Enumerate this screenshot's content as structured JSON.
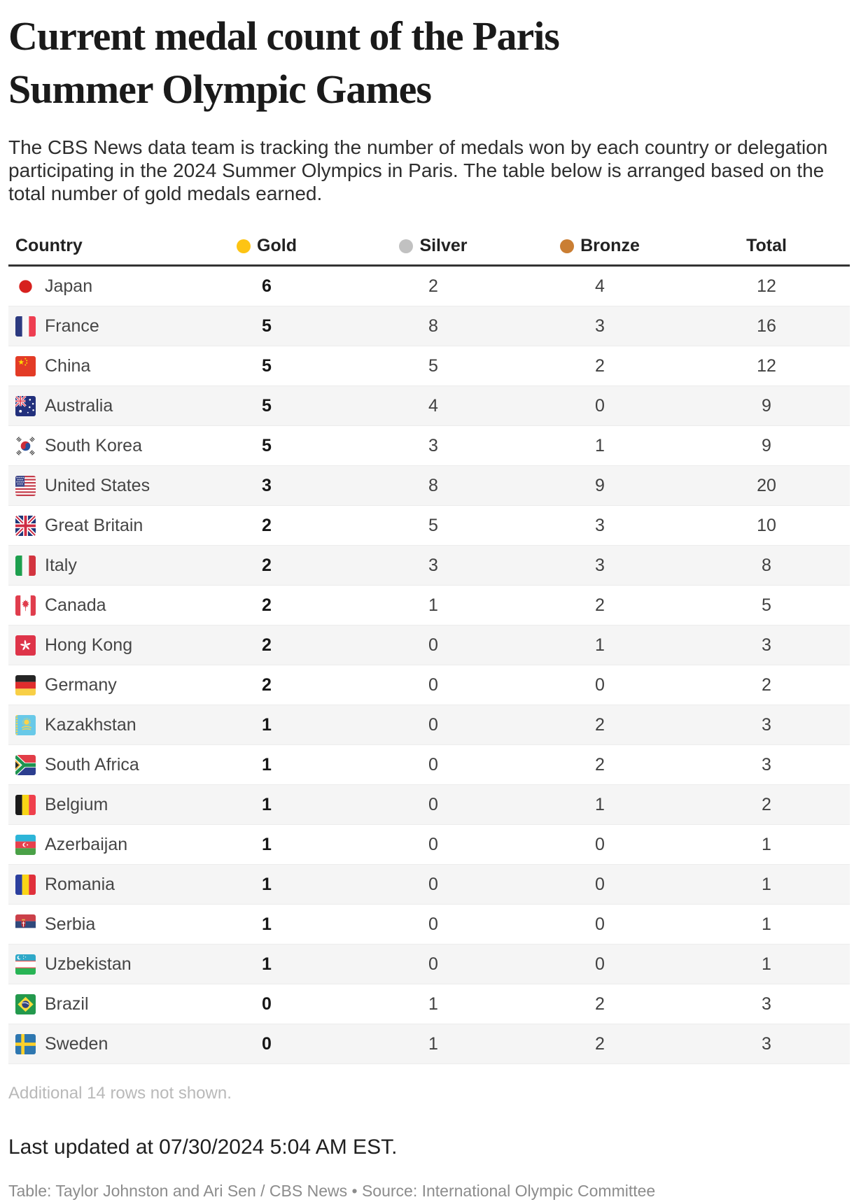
{
  "page": {
    "title": "Current medal count of the Paris Summer Olympic Games",
    "intro": "The CBS News data team is tracking the number of medals won by each country or delegation participating in the 2024 Summer Olympics in Paris. The table below is arranged based on the total number of gold medals earned."
  },
  "table": {
    "columns": [
      {
        "key": "country",
        "label": "Country"
      },
      {
        "key": "gold",
        "label": "Gold",
        "dot_color": "#fdc414"
      },
      {
        "key": "silver",
        "label": "Silver",
        "dot_color": "#c1c1c1"
      },
      {
        "key": "bronze",
        "label": "Bronze",
        "dot_color": "#ca7e33"
      },
      {
        "key": "total",
        "label": "Total"
      }
    ],
    "rows": [
      {
        "country": "Japan",
        "flag": "japan",
        "gold": 6,
        "silver": 2,
        "bronze": 4,
        "total": 12
      },
      {
        "country": "France",
        "flag": "france",
        "gold": 5,
        "silver": 8,
        "bronze": 3,
        "total": 16
      },
      {
        "country": "China",
        "flag": "china",
        "gold": 5,
        "silver": 5,
        "bronze": 2,
        "total": 12
      },
      {
        "country": "Australia",
        "flag": "australia",
        "gold": 5,
        "silver": 4,
        "bronze": 0,
        "total": 9
      },
      {
        "country": "South Korea",
        "flag": "south-korea",
        "gold": 5,
        "silver": 3,
        "bronze": 1,
        "total": 9
      },
      {
        "country": "United States",
        "flag": "united-states",
        "gold": 3,
        "silver": 8,
        "bronze": 9,
        "total": 20
      },
      {
        "country": "Great Britain",
        "flag": "great-britain",
        "gold": 2,
        "silver": 5,
        "bronze": 3,
        "total": 10
      },
      {
        "country": "Italy",
        "flag": "italy",
        "gold": 2,
        "silver": 3,
        "bronze": 3,
        "total": 8
      },
      {
        "country": "Canada",
        "flag": "canada",
        "gold": 2,
        "silver": 1,
        "bronze": 2,
        "total": 5
      },
      {
        "country": "Hong Kong",
        "flag": "hong-kong",
        "gold": 2,
        "silver": 0,
        "bronze": 1,
        "total": 3
      },
      {
        "country": "Germany",
        "flag": "germany",
        "gold": 2,
        "silver": 0,
        "bronze": 0,
        "total": 2
      },
      {
        "country": "Kazakhstan",
        "flag": "kazakhstan",
        "gold": 1,
        "silver": 0,
        "bronze": 2,
        "total": 3
      },
      {
        "country": "South Africa",
        "flag": "south-africa",
        "gold": 1,
        "silver": 0,
        "bronze": 2,
        "total": 3
      },
      {
        "country": "Belgium",
        "flag": "belgium",
        "gold": 1,
        "silver": 0,
        "bronze": 1,
        "total": 2
      },
      {
        "country": "Azerbaijan",
        "flag": "azerbaijan",
        "gold": 1,
        "silver": 0,
        "bronze": 0,
        "total": 1
      },
      {
        "country": "Romania",
        "flag": "romania",
        "gold": 1,
        "silver": 0,
        "bronze": 0,
        "total": 1
      },
      {
        "country": "Serbia",
        "flag": "serbia",
        "gold": 1,
        "silver": 0,
        "bronze": 0,
        "total": 1
      },
      {
        "country": "Uzbekistan",
        "flag": "uzbekistan",
        "gold": 1,
        "silver": 0,
        "bronze": 0,
        "total": 1
      },
      {
        "country": "Brazil",
        "flag": "brazil",
        "gold": 0,
        "silver": 1,
        "bronze": 2,
        "total": 3
      },
      {
        "country": "Sweden",
        "flag": "sweden",
        "gold": 0,
        "silver": 1,
        "bronze": 2,
        "total": 3
      }
    ],
    "note": "Additional 14 rows not shown."
  },
  "footer": {
    "last_updated": "Last updated at 07/30/2024 5:04 AM EST.",
    "credits": "Table: Taylor Johnston and Ari Sen / CBS News • Source: International Olympic Committee"
  },
  "chart_data": {
    "type": "table",
    "title": "Current medal count of the Paris Summer Olympic Games",
    "columns": [
      "Country",
      "Gold",
      "Silver",
      "Bronze",
      "Total"
    ],
    "rows": [
      [
        "Japan",
        6,
        2,
        4,
        12
      ],
      [
        "France",
        5,
        8,
        3,
        16
      ],
      [
        "China",
        5,
        5,
        2,
        12
      ],
      [
        "Australia",
        5,
        4,
        0,
        9
      ],
      [
        "South Korea",
        5,
        3,
        1,
        9
      ],
      [
        "United States",
        3,
        8,
        9,
        20
      ],
      [
        "Great Britain",
        2,
        5,
        3,
        10
      ],
      [
        "Italy",
        2,
        3,
        3,
        8
      ],
      [
        "Canada",
        2,
        1,
        2,
        5
      ],
      [
        "Hong Kong",
        2,
        0,
        1,
        3
      ],
      [
        "Germany",
        2,
        0,
        0,
        2
      ],
      [
        "Kazakhstan",
        1,
        0,
        2,
        3
      ],
      [
        "South Africa",
        1,
        0,
        2,
        3
      ],
      [
        "Belgium",
        1,
        0,
        1,
        2
      ],
      [
        "Azerbaijan",
        1,
        0,
        0,
        1
      ],
      [
        "Romania",
        1,
        0,
        0,
        1
      ],
      [
        "Serbia",
        1,
        0,
        0,
        1
      ],
      [
        "Uzbekistan",
        1,
        0,
        0,
        1
      ],
      [
        "Brazil",
        0,
        1,
        2,
        3
      ],
      [
        "Sweden",
        0,
        1,
        2,
        3
      ]
    ],
    "sort": "descending by gold medals",
    "note": "Additional 14 rows not shown.",
    "legend_colors": {
      "gold": "#fdc414",
      "silver": "#c1c1c1",
      "bronze": "#ca7e33"
    }
  }
}
